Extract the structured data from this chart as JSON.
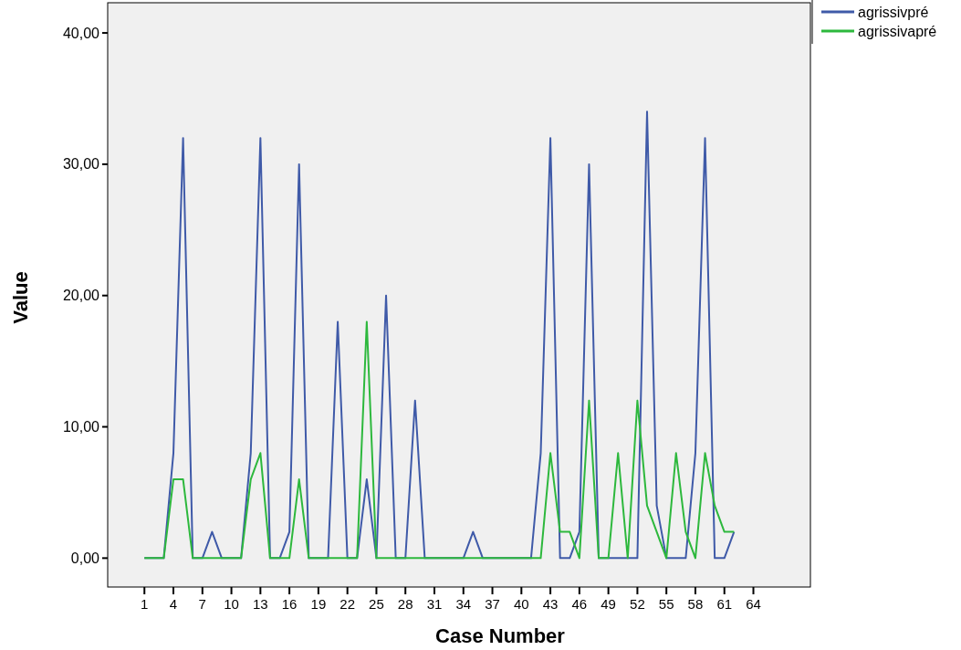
{
  "chart_data": {
    "type": "line",
    "xlabel": "Case Number",
    "ylabel": "Value",
    "x": [
      1,
      2,
      3,
      4,
      5,
      6,
      7,
      8,
      9,
      10,
      11,
      12,
      13,
      14,
      15,
      16,
      17,
      18,
      19,
      20,
      21,
      22,
      23,
      24,
      25,
      26,
      27,
      28,
      29,
      30,
      31,
      32,
      33,
      34,
      35,
      36,
      37,
      38,
      39,
      40,
      41,
      42,
      43,
      44,
      45,
      46,
      47,
      48,
      49,
      50,
      51,
      52,
      53,
      54,
      55,
      56,
      57,
      58,
      59,
      60,
      61,
      62
    ],
    "series": [
      {
        "name": "agrissivpré",
        "color": "#3f5aa8",
        "values": [
          0,
          0,
          0,
          8,
          32,
          0,
          0,
          2,
          0,
          0,
          0,
          8,
          32,
          0,
          0,
          2,
          30,
          0,
          0,
          0,
          18,
          0,
          0,
          6,
          0,
          20,
          0,
          0,
          12,
          0,
          0,
          0,
          0,
          0,
          2,
          0,
          0,
          0,
          0,
          0,
          0,
          8,
          32,
          0,
          0,
          2,
          30,
          0,
          0,
          0,
          0,
          0,
          34,
          4,
          0,
          0,
          0,
          8,
          32,
          0,
          0,
          2
        ]
      },
      {
        "name": "agrissivapré",
        "color": "#2db83d",
        "values": [
          0,
          0,
          0,
          6,
          6,
          0,
          0,
          0,
          0,
          0,
          0,
          6,
          8,
          0,
          0,
          0,
          6,
          0,
          0,
          0,
          0,
          0,
          0,
          18,
          0,
          0,
          0,
          0,
          0,
          0,
          0,
          0,
          0,
          0,
          0,
          0,
          0,
          0,
          0,
          0,
          0,
          0,
          8,
          2,
          2,
          0,
          12,
          0,
          0,
          8,
          0,
          12,
          4,
          2,
          0,
          8,
          2,
          0,
          8,
          4,
          2,
          2
        ]
      }
    ],
    "xlim": [
      -2.8,
      69.9
    ],
    "xticks": [
      1,
      4,
      7,
      10,
      13,
      16,
      19,
      22,
      25,
      28,
      31,
      34,
      37,
      40,
      43,
      46,
      49,
      52,
      55,
      58,
      61,
      64
    ],
    "ylim": [
      -2.2,
      42.3
    ],
    "yticks": [
      {
        "value": 0,
        "label": "0,00"
      },
      {
        "value": 10,
        "label": "10,00"
      },
      {
        "value": 20,
        "label": "20,00"
      },
      {
        "value": 30,
        "label": "30,00"
      },
      {
        "value": 40,
        "label": "40,00"
      }
    ],
    "grid": false,
    "legend": "top right",
    "marker": "none",
    "line_style": "solid"
  }
}
